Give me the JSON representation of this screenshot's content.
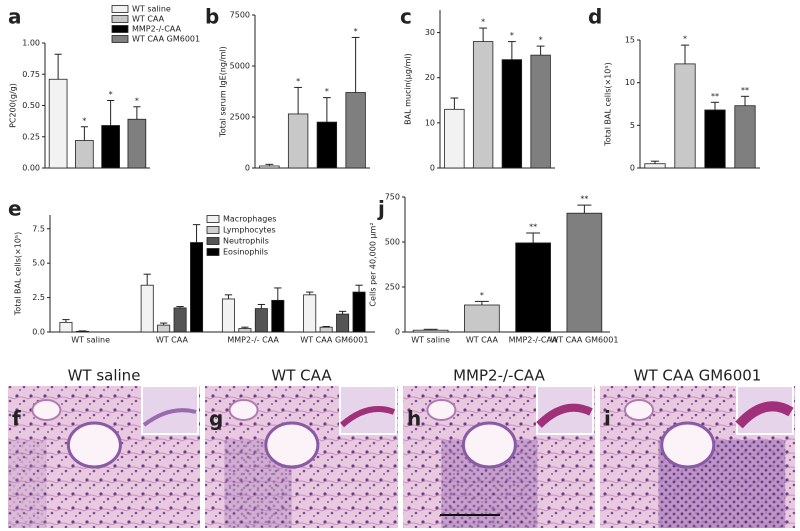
{
  "chart_data": [
    {
      "type": "bar",
      "panel": "a",
      "ylabel": "PC200(g/g)",
      "ylim": [
        0,
        1.0
      ],
      "yticks": [
        {
          "value": 0,
          "label": "0.00"
        },
        {
          "value": 0.25,
          "label": "0.25"
        },
        {
          "value": 0.5,
          "label": "0.50"
        },
        {
          "value": 0.75,
          "label": "0.75"
        },
        {
          "value": 1.0,
          "label": "1.00"
        }
      ],
      "values": [
        0.71,
        0.22,
        0.34,
        0.39
      ],
      "errors": [
        0.2,
        0.11,
        0.2,
        0.1
      ],
      "annotations": [
        null,
        "*",
        "*",
        "*"
      ],
      "legend": [
        {
          "name": "WT saline",
          "color": "#f2f2f2"
        },
        {
          "name": "WT CAA",
          "color": "#c8c8c8"
        },
        {
          "name": "MMP2-/-CAA",
          "color": "#000000"
        },
        {
          "name": "WT CAA GM6001",
          "color": "#7f7f7f"
        }
      ]
    },
    {
      "type": "bar",
      "panel": "b",
      "ylabel": "Total serum IgE(ng/ml)",
      "ylim": [
        0,
        7500
      ],
      "yticks": [
        0,
        2500,
        5000,
        7500
      ],
      "values": [
        100,
        2650,
        2250,
        3700
      ],
      "errors": [
        80,
        1300,
        1200,
        2700
      ],
      "annotations": [
        null,
        "*",
        "*",
        "*"
      ]
    },
    {
      "type": "bar",
      "panel": "c",
      "ylabel": "BAL mucin(μg/ml)",
      "ylim": [
        0,
        35
      ],
      "yticks": [
        0,
        10,
        20,
        30
      ],
      "values": [
        13,
        28,
        24,
        25
      ],
      "errors": [
        2.5,
        3,
        4,
        2
      ],
      "annotations": [
        null,
        "*",
        "*",
        "*"
      ]
    },
    {
      "type": "bar",
      "panel": "d",
      "ylabel": "Total BAL cells(×10⁵)",
      "ylim": [
        0,
        15
      ],
      "yticks": [
        0,
        5,
        10,
        15
      ],
      "values": [
        0.5,
        12.2,
        6.8,
        7.3
      ],
      "errors": [
        0.3,
        2.2,
        0.9,
        1.1
      ],
      "annotations": [
        null,
        "*",
        "**",
        "**"
      ]
    },
    {
      "type": "grouped_bar",
      "panel": "e",
      "ylabel": "Total BAL cells(×10⁵)",
      "ylim": [
        0,
        8.5
      ],
      "yticks": [
        {
          "value": 0,
          "label": "0.0"
        },
        2.5,
        {
          "value": 5,
          "label": "5.0"
        },
        7.5
      ],
      "categories": [
        "WT saline",
        "WT CAA",
        "MMP2-/- CAA",
        "WT CAA GM6001"
      ],
      "series": [
        {
          "name": "Macrophages",
          "color": "#f2f2f2",
          "values": [
            0.7,
            3.4,
            2.4,
            2.7
          ],
          "errors": [
            0.2,
            0.8,
            0.3,
            0.2
          ]
        },
        {
          "name": "Lymphocytes",
          "color": "#d0d0d0",
          "values": [
            0.05,
            0.5,
            0.25,
            0.35
          ],
          "errors": [
            0.03,
            0.15,
            0.1,
            0.05
          ]
        },
        {
          "name": "Neutrophils",
          "color": "#555555",
          "values": [
            0,
            1.75,
            1.7,
            1.3
          ],
          "errors": [
            0,
            0.1,
            0.3,
            0.2
          ]
        },
        {
          "name": "Eosinophils",
          "color": "#000000",
          "values": [
            0,
            6.5,
            2.3,
            2.9
          ],
          "errors": [
            0,
            1.3,
            0.9,
            0.5
          ]
        }
      ]
    },
    {
      "type": "bar",
      "panel": "j",
      "ylabel": "Cells per 40,000 μm²",
      "ylim": [
        0,
        750
      ],
      "yticks": [
        0,
        250,
        500,
        750
      ],
      "categories": [
        "WT saline",
        "WT CAA",
        "MMP2-/-CAA",
        "WT CAA GM6001"
      ],
      "values": [
        10,
        150,
        495,
        660
      ],
      "errors": [
        5,
        20,
        55,
        45
      ],
      "annotations": [
        null,
        "*",
        "**",
        "**"
      ]
    }
  ],
  "images": [
    {
      "letter": "f",
      "title": "WT saline"
    },
    {
      "letter": "g",
      "title": "WT CAA"
    },
    {
      "letter": "h",
      "title": "MMP2-/-CAA"
    },
    {
      "letter": "i",
      "title": "WT CAA GM6001"
    }
  ]
}
